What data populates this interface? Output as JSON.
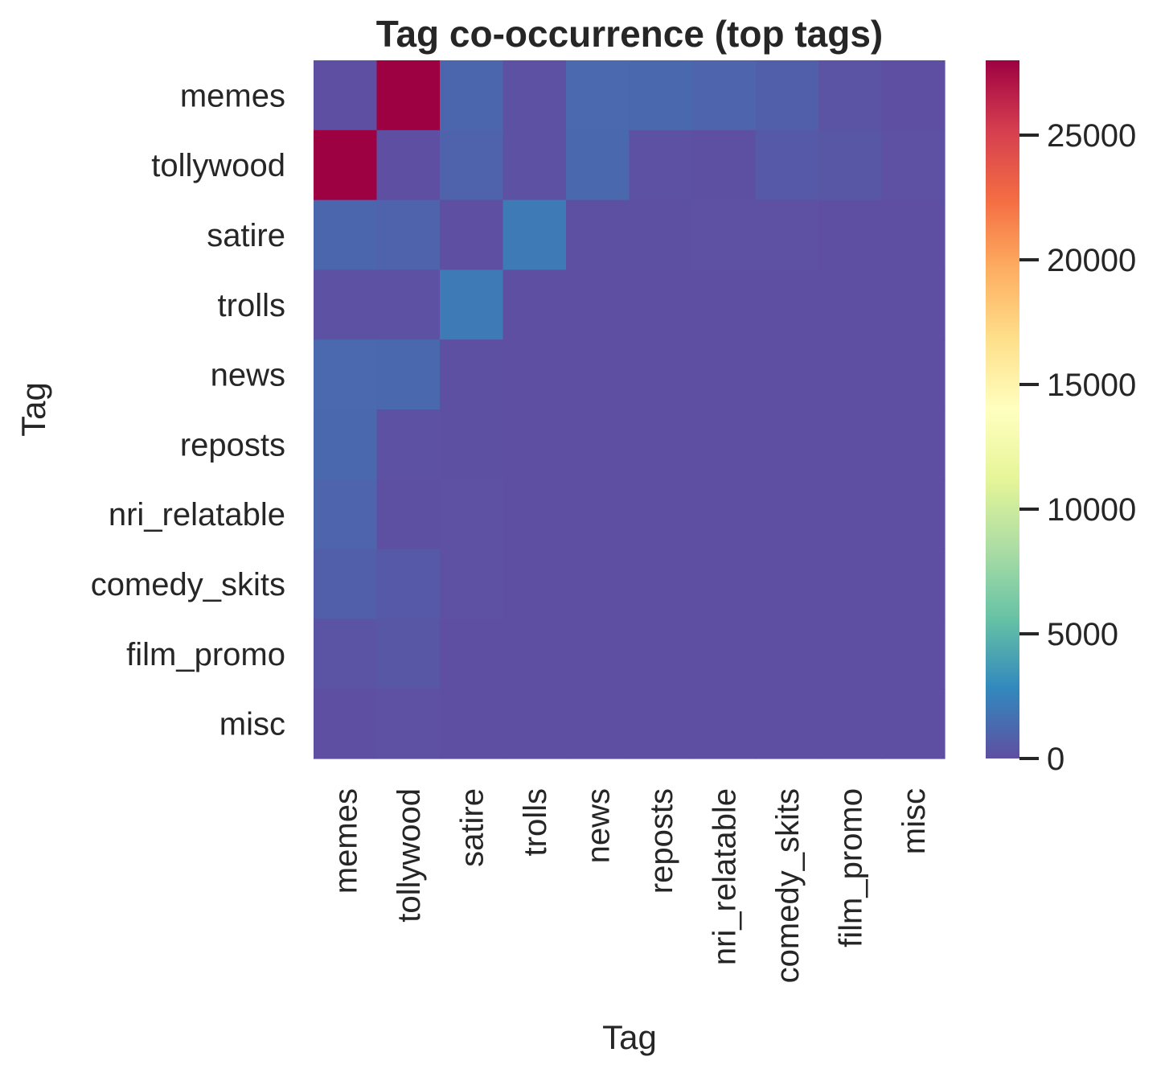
{
  "chart_data": {
    "type": "heatmap",
    "title": "Tag co-occurrence (top tags)",
    "xlabel": "Tag",
    "ylabel": "Tag",
    "x_categories": [
      "memes",
      "tollywood",
      "satire",
      "trolls",
      "news",
      "reposts",
      "nri_relatable",
      "comedy_skits",
      "film_promo",
      "misc"
    ],
    "y_categories": [
      "memes",
      "tollywood",
      "satire",
      "trolls",
      "news",
      "reposts",
      "nri_relatable",
      "comedy_skits",
      "film_promo",
      "misc"
    ],
    "values": [
      [
        0,
        28000,
        1150,
        80,
        1300,
        1250,
        1050,
        800,
        200,
        20
      ],
      [
        28000,
        0,
        1000,
        120,
        1250,
        80,
        60,
        500,
        400,
        30
      ],
      [
        1150,
        1000,
        0,
        2100,
        50,
        40,
        30,
        30,
        20,
        10
      ],
      [
        80,
        120,
        2100,
        0,
        20,
        20,
        15,
        15,
        10,
        5
      ],
      [
        1300,
        1250,
        50,
        20,
        0,
        20,
        10,
        10,
        10,
        5
      ],
      [
        1250,
        80,
        40,
        20,
        20,
        0,
        10,
        10,
        5,
        5
      ],
      [
        1050,
        60,
        30,
        15,
        10,
        10,
        0,
        10,
        5,
        5
      ],
      [
        800,
        500,
        30,
        15,
        10,
        10,
        10,
        0,
        5,
        5
      ],
      [
        200,
        400,
        20,
        10,
        10,
        5,
        5,
        5,
        0,
        5
      ],
      [
        20,
        30,
        10,
        5,
        5,
        5,
        5,
        5,
        5,
        0
      ]
    ],
    "colormap": "Spectral_r",
    "vmin": 0,
    "vmax": 28000,
    "colorbar_ticks": [
      0,
      5000,
      10000,
      15000,
      20000,
      25000
    ],
    "grid": false
  }
}
